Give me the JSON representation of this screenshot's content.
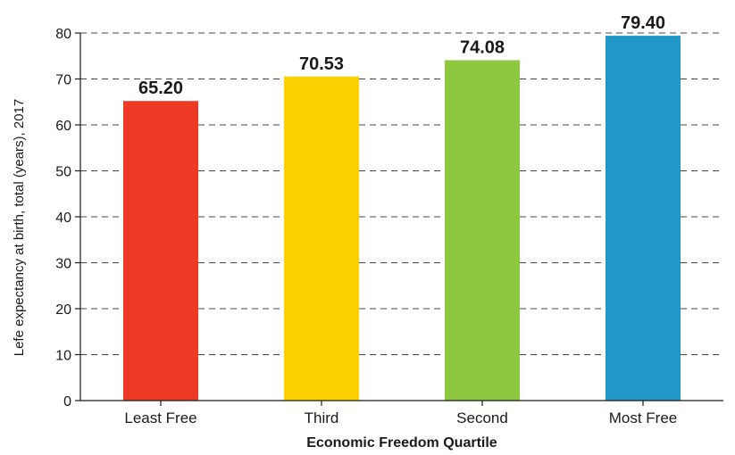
{
  "chart_data": {
    "type": "bar",
    "title": "",
    "xlabel": "Economic Freedom Quartile",
    "ylabel": "Lefe expectancy at birth, total (years), 2017",
    "categories": [
      "Least Free",
      "Third",
      "Second",
      "Most Free"
    ],
    "values": [
      65.2,
      70.53,
      74.08,
      79.4
    ],
    "value_labels": [
      "65.20",
      "70.53",
      "74.08",
      "79.40"
    ],
    "colors": [
      "#ee3a24",
      "#fdd000",
      "#8dc63f",
      "#2196c9"
    ],
    "ylim": [
      0,
      80
    ],
    "yticks": [
      0,
      10,
      20,
      30,
      40,
      50,
      60,
      70,
      80
    ],
    "grid": true,
    "grid_style": "dashed",
    "legend": "none"
  }
}
